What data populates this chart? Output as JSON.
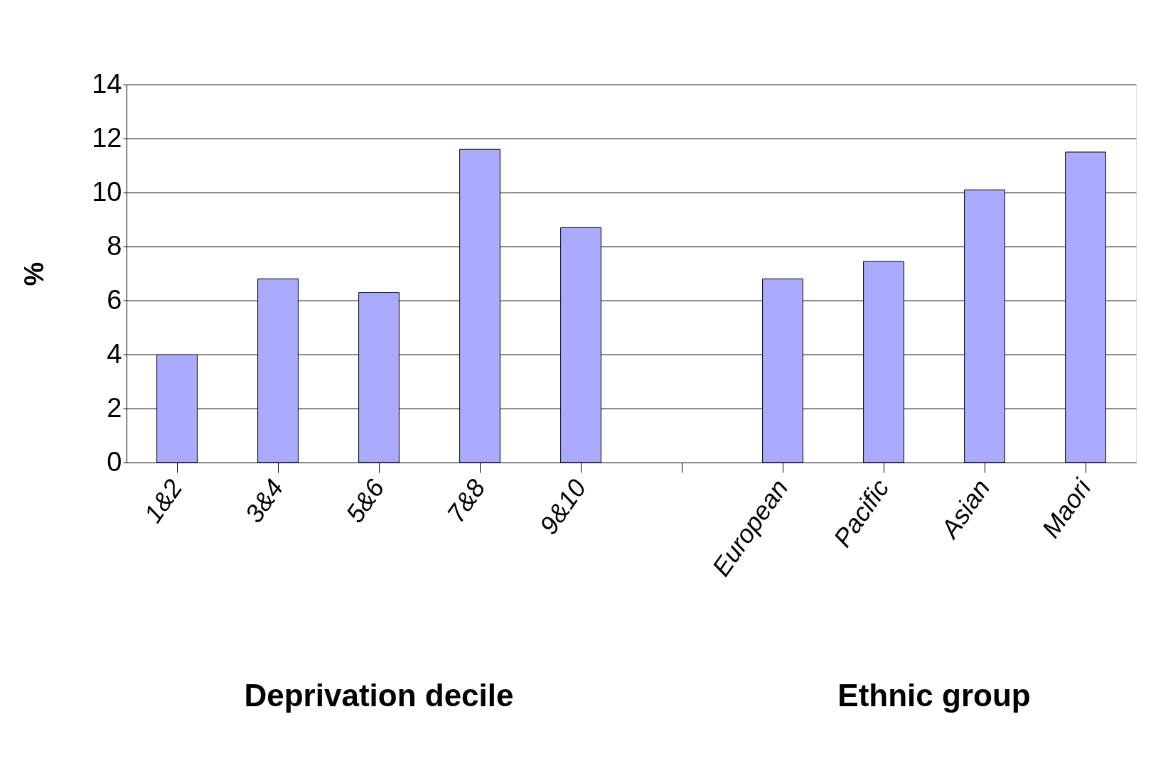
{
  "chart_data": {
    "type": "bar",
    "ylabel": "%",
    "xlabel": "Deprivation decile",
    "annotations": [
      "Ethnic group"
    ],
    "categories": [
      "1&2",
      "3&4",
      "5&6",
      "7&8",
      "9&10",
      null,
      "European",
      "Pacific",
      "Asian",
      "Maori"
    ],
    "values": [
      4.0,
      6.8,
      6.3,
      11.6,
      8.7,
      null,
      6.8,
      7.45,
      10.1,
      11.5
    ],
    "color": "#aaaaff",
    "ylim": [
      0,
      14
    ],
    "yticks": [
      0,
      2,
      4,
      6,
      8,
      10,
      12,
      14
    ],
    "grid": "y"
  }
}
